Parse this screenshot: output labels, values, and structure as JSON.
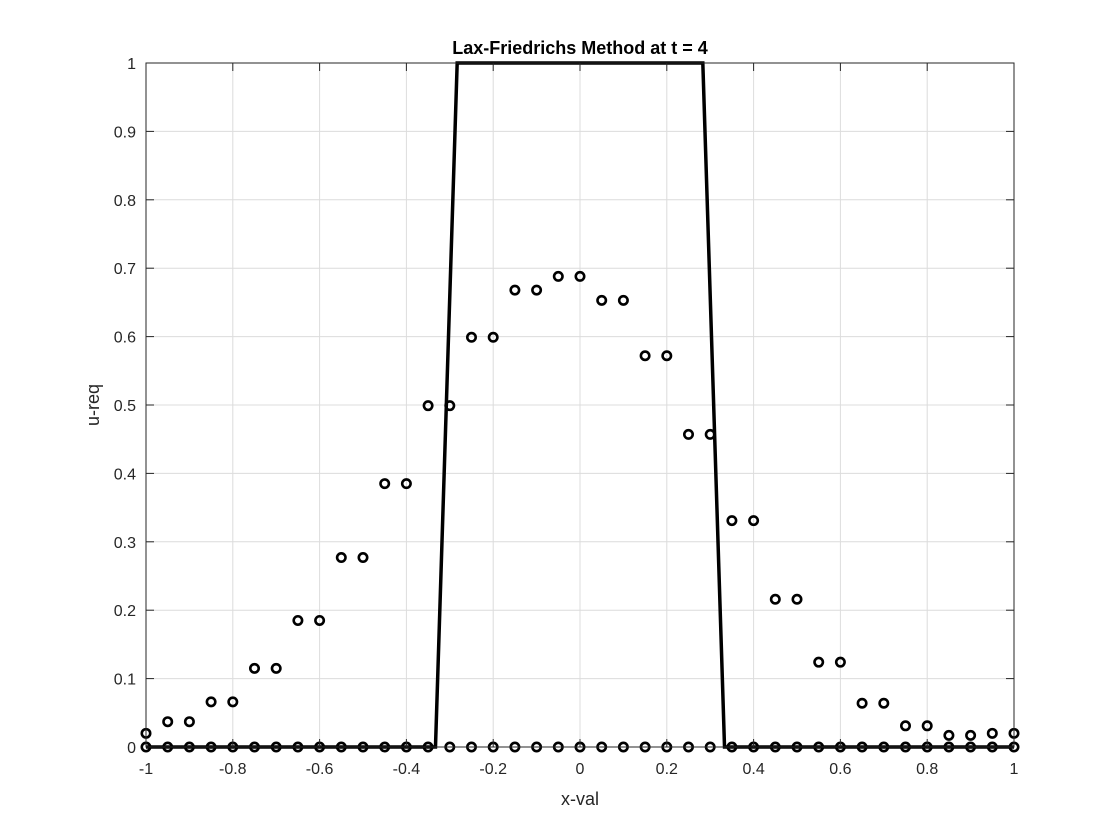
{
  "chart_data": {
    "type": "line",
    "title": "Lax-Friedrichs Method at t = 4",
    "xlabel": "x-val",
    "ylabel": "u-req",
    "xlim": [
      -1,
      1
    ],
    "ylim": [
      0,
      1
    ],
    "grid": true,
    "x_ticks": [
      "-1",
      "-0.8",
      "-0.6",
      "-0.4",
      "-0.2",
      "0",
      "0.2",
      "0.4",
      "0.6",
      "0.8",
      "1"
    ],
    "y_ticks": [
      "0",
      "0.1",
      "0.2",
      "0.3",
      "0.4",
      "0.5",
      "0.6",
      "0.7",
      "0.8",
      "0.9",
      "1"
    ],
    "colors": {
      "series": "#000000",
      "grid": "#dcdcdc",
      "axes": "#262626"
    },
    "series": [
      {
        "style": "line",
        "x": [
          -1,
          -0.333,
          -0.283,
          0.283,
          0.333,
          1
        ],
        "y": [
          0,
          0,
          1,
          1,
          0,
          0
        ]
      },
      {
        "style": "markers",
        "marker": "circle",
        "x": [
          -1,
          -0.95,
          -0.9,
          -0.85,
          -0.8,
          -0.75,
          -0.7,
          -0.65,
          -0.6,
          -0.55,
          -0.5,
          -0.45,
          -0.4,
          -0.35,
          -0.3,
          -0.25,
          -0.2,
          -0.15,
          -0.1,
          -0.05,
          0,
          0.05,
          0.1,
          0.15,
          0.2,
          0.25,
          0.3,
          0.35,
          0.4,
          0.45,
          0.5,
          0.55,
          0.6,
          0.65,
          0.7,
          0.75,
          0.8,
          0.85,
          0.9,
          0.95,
          1
        ],
        "y": [
          0.02,
          0.037,
          0.037,
          0.066,
          0.066,
          0.115,
          0.115,
          0.185,
          0.185,
          0.277,
          0.277,
          0.385,
          0.385,
          0.499,
          0.499,
          0.599,
          0.599,
          0.668,
          0.668,
          0.688,
          0.688,
          0.653,
          0.653,
          0.572,
          0.572,
          0.457,
          0.457,
          0.331,
          0.331,
          0.216,
          0.216,
          0.124,
          0.124,
          0.064,
          0.064,
          0.031,
          0.031,
          0.017,
          0.017,
          0.02,
          0.02
        ]
      },
      {
        "style": "markers",
        "marker": "circle",
        "x": [
          -1,
          -0.95,
          -0.9,
          -0.85,
          -0.8,
          -0.75,
          -0.7,
          -0.65,
          -0.6,
          -0.55,
          -0.5,
          -0.45,
          -0.4,
          -0.35,
          -0.3,
          -0.25,
          -0.2,
          -0.15,
          -0.1,
          -0.05,
          0,
          0.05,
          0.1,
          0.15,
          0.2,
          0.25,
          0.3,
          0.35,
          0.4,
          0.45,
          0.5,
          0.55,
          0.6,
          0.65,
          0.7,
          0.75,
          0.8,
          0.85,
          0.9,
          0.95,
          1
        ],
        "y": [
          0,
          0,
          0,
          0,
          0,
          0,
          0,
          0,
          0,
          0,
          0,
          0,
          0,
          0,
          0,
          0,
          0,
          0,
          0,
          0,
          0,
          0,
          0,
          0,
          0,
          0,
          0,
          0,
          0,
          0,
          0,
          0,
          0,
          0,
          0,
          0,
          0,
          0,
          0,
          0,
          0
        ]
      }
    ]
  }
}
